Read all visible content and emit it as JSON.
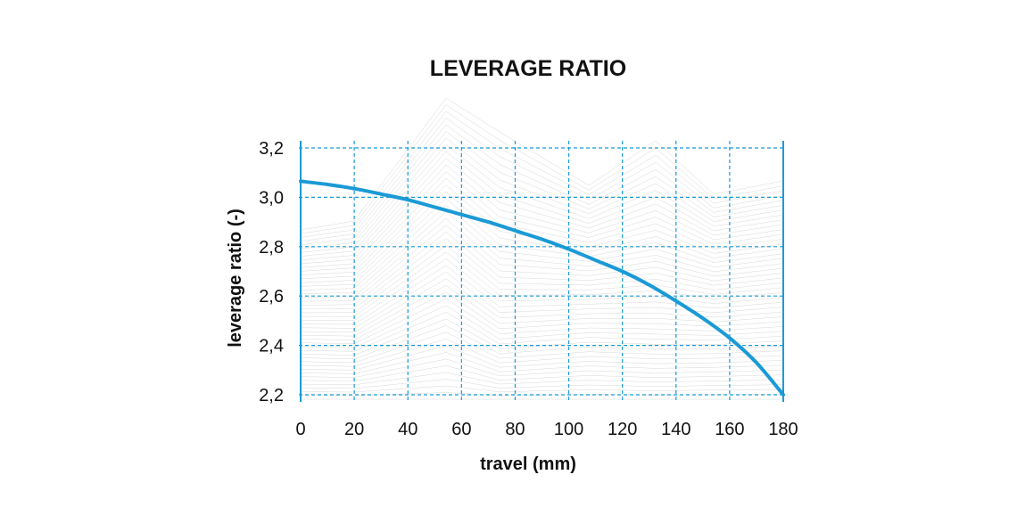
{
  "chart_data": {
    "type": "line",
    "title": "LEVERAGE RATIO",
    "xlabel": "travel (mm)",
    "ylabel": "leverage ratio (-)",
    "xlim": [
      0,
      180
    ],
    "ylim": [
      2.2,
      3.2
    ],
    "x_ticks": [
      "0",
      "20",
      "40",
      "60",
      "80",
      "100",
      "120",
      "140",
      "160",
      "180"
    ],
    "y_ticks": [
      "2,2",
      "2,4",
      "2,6",
      "2,8",
      "3,0",
      "3,2"
    ],
    "grid": true,
    "legend": "none",
    "series": [
      {
        "color": "#1a9ad6",
        "x": [
          0,
          10,
          20,
          30,
          40,
          50,
          60,
          70,
          80,
          90,
          100,
          110,
          120,
          130,
          140,
          150,
          160,
          170,
          180
        ],
        "y": [
          3.065,
          3.052,
          3.035,
          3.013,
          2.99,
          2.96,
          2.93,
          2.9,
          2.865,
          2.83,
          2.79,
          2.745,
          2.7,
          2.645,
          2.58,
          2.51,
          2.43,
          2.33,
          2.2
        ]
      }
    ]
  },
  "colors": {
    "grid": "#1a9ad6",
    "line": "#1a9ad6",
    "background_mesh": "#bdbdbd"
  }
}
